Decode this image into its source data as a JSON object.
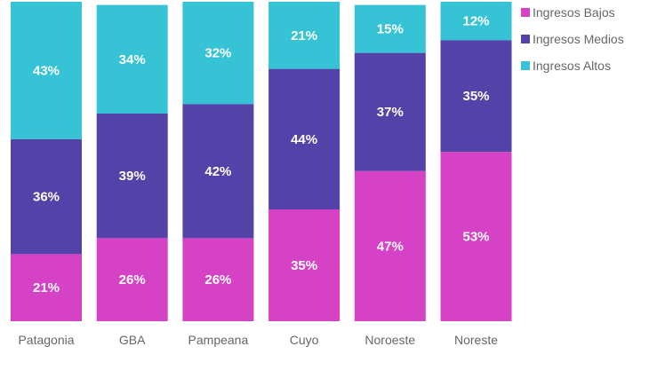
{
  "chart_data": {
    "type": "bar",
    "stacked": true,
    "percent_stacked": true,
    "categories": [
      "Patagonia",
      "GBA",
      "Pampeana",
      "Cuyo",
      "Noroeste",
      "Noreste"
    ],
    "series": [
      {
        "name": "Ingresos Bajos",
        "color": "#D642C6",
        "values": [
          21,
          26,
          26,
          35,
          47,
          53
        ]
      },
      {
        "name": "Ingresos Medios",
        "color": "#5342A8",
        "values": [
          36,
          39,
          42,
          44,
          37,
          35
        ]
      },
      {
        "name": "Ingresos Altos",
        "color": "#36C3D6",
        "values": [
          43,
          34,
          32,
          21,
          15,
          12
        ]
      }
    ],
    "data_label_format": "{v}%",
    "legend_position": "top-right",
    "ylim": [
      0,
      100
    ],
    "title": "",
    "xlabel": "",
    "ylabel": "",
    "grid": false
  }
}
